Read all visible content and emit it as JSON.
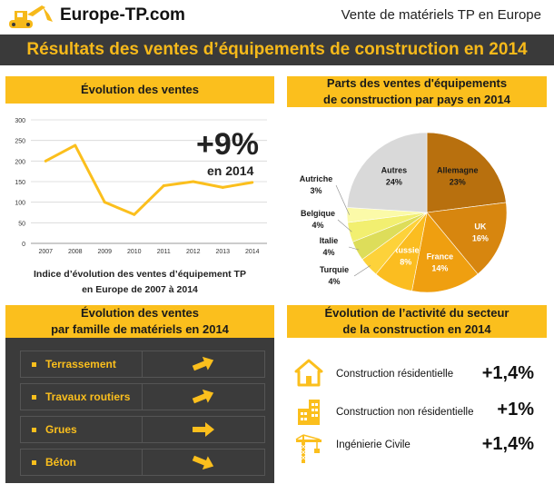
{
  "header": {
    "site_name": "Europe-TP.com",
    "tagline": "Vente de matériels TP en Europe"
  },
  "banner_title": "Résultats des ventes d’équipements de construction en 2014",
  "sales_panel": {
    "title": "Évolution des ventes",
    "big_value": "+9%",
    "big_value_sub": "en 2014",
    "caption_line1": "Indice d’évolution des ventes d’équipement TP",
    "caption_line2": "en Europe de 2007 à 2014"
  },
  "pie_panel": {
    "title_line1": "Parts des ventes d'équipements",
    "title_line2": "de construction par pays en 2014"
  },
  "family_panel": {
    "title_line1": "Évolution des ventes",
    "title_line2": "par famille de matériels en 2014",
    "items": [
      {
        "label": "Terrassement",
        "trend": "up"
      },
      {
        "label": "Travaux routiers",
        "trend": "up"
      },
      {
        "label": "Grues",
        "trend": "flat"
      },
      {
        "label": "Béton",
        "trend": "down"
      }
    ]
  },
  "activity_panel": {
    "title_line1": "Évolution  de l’activité du secteur",
    "title_line2": "de la construction en 2014",
    "items": [
      {
        "label": "Construction résidentielle",
        "value": "+1,4%",
        "icon": "house-icon"
      },
      {
        "label": "Construction non résidentielle",
        "value": "+1%",
        "icon": "building-icon"
      },
      {
        "label": "Ingénierie Civile",
        "value": "+1,4%",
        "icon": "crane-icon"
      }
    ]
  },
  "colors": {
    "accent": "#fbbf1d",
    "dark": "#3a3a3a",
    "line": "#fbbf1d"
  },
  "chart_data": [
    {
      "type": "line",
      "x": [
        "2007",
        "2008",
        "2009",
        "2010",
        "2011",
        "2012",
        "2013",
        "2014"
      ],
      "series": [
        {
          "values": [
            200,
            238,
            100,
            70,
            140,
            150,
            136,
            148
          ]
        }
      ],
      "ylim": [
        0,
        300
      ],
      "yticks": [
        0,
        50,
        100,
        150,
        200,
        250,
        300
      ],
      "grid": true,
      "xlabel": "",
      "ylabel": ""
    },
    {
      "type": "pie",
      "slices": [
        {
          "label": "Allemagne",
          "value": 23,
          "display": "23%",
          "color": "#b8700e"
        },
        {
          "label": "UK",
          "value": 16,
          "display": "16%",
          "color": "#d7860f"
        },
        {
          "label": "France",
          "value": 14,
          "display": "14%",
          "color": "#ef9f10"
        },
        {
          "label": "Russie",
          "value": 8,
          "display": "8%",
          "color": "#fbbd20"
        },
        {
          "label": "Turquie",
          "value": 4,
          "display": "4%",
          "color": "#fdd23a"
        },
        {
          "label": "Italie",
          "value": 4,
          "display": "4%",
          "color": "#dddd5a"
        },
        {
          "label": "Belgique",
          "value": 4,
          "display": "4%",
          "color": "#f2ef70"
        },
        {
          "label": "Autriche",
          "value": 3,
          "display": "3%",
          "color": "#fbfaa8"
        },
        {
          "label": "Autres",
          "value": 24,
          "display": "24%",
          "color": "#d9d9d9"
        }
      ]
    }
  ]
}
